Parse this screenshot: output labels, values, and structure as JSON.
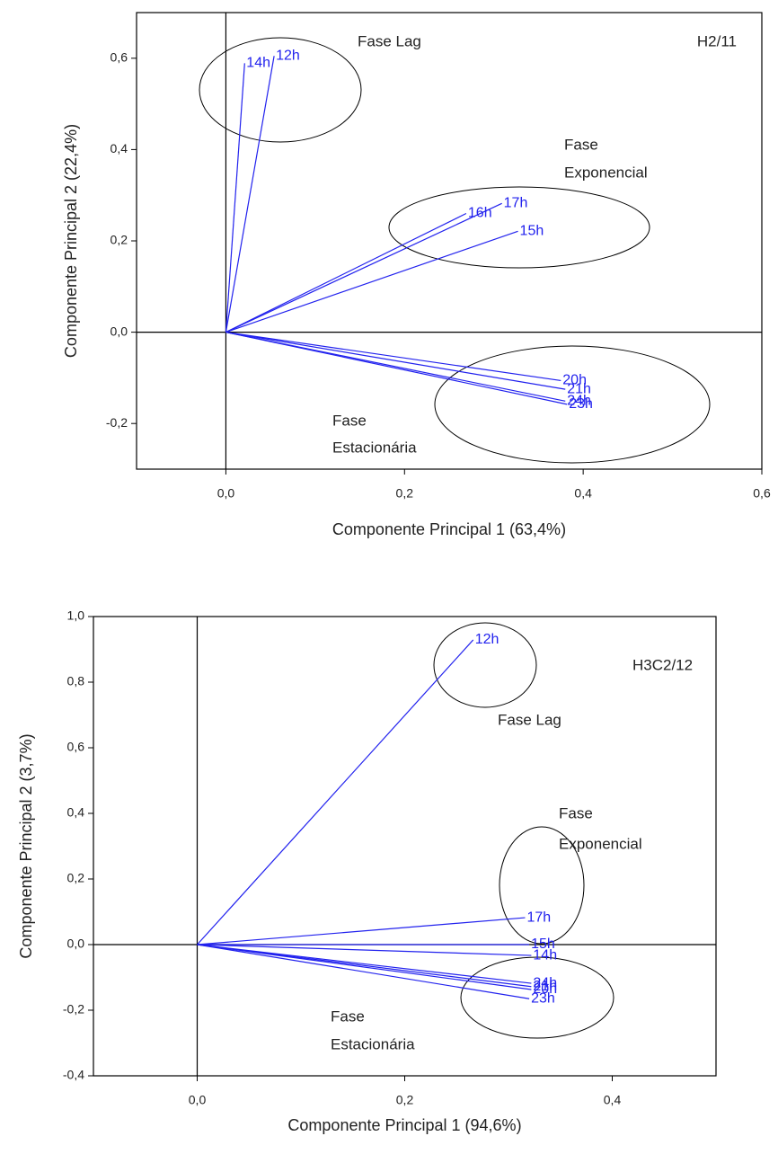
{
  "chart_data": [
    {
      "type": "biplot",
      "annotations": [
        "Fase Lag",
        "H2/11",
        "Fase",
        "Exponencial",
        "Fase",
        "Estacionária"
      ],
      "x_label": "Componente Principal 1 (63,4%)",
      "y_label": "Componente Principal 2 (22,4%)",
      "color": "#2222ee",
      "labels": [
        "14h",
        "12h",
        "16h",
        "17h",
        "15h",
        "20h",
        "21h",
        "24h",
        "23h"
      ],
      "x": [
        0.021,
        0.054,
        0.269,
        0.309,
        0.327,
        0.375,
        0.38,
        0.38,
        0.382
      ],
      "y": [
        0.589,
        0.605,
        0.26,
        0.282,
        0.221,
        -0.106,
        -0.125,
        -0.151,
        -0.158
      ],
      "xlim": [
        -0.1,
        0.6
      ],
      "ylim": [
        -0.3,
        0.7
      ],
      "xticks": [
        {
          "value": 0.0,
          "label": "0,0"
        },
        {
          "value": 0.2,
          "label": "0,2"
        },
        {
          "value": 0.4,
          "label": "0,4"
        },
        {
          "value": 0.6,
          "label": "0,6"
        }
      ],
      "yticks": [
        {
          "value": -0.2,
          "label": "-0,2"
        },
        {
          "value": 0.0,
          "label": "0,0"
        },
        {
          "value": 0.2,
          "label": "0,2"
        },
        {
          "value": 0.4,
          "label": "0,4"
        },
        {
          "value": 0.6,
          "label": "0,6"
        }
      ]
    },
    {
      "type": "biplot",
      "annotations": [
        "H3C2/12",
        "Fase Lag",
        "Fase",
        "Exponencial",
        "Fase",
        "Estacionária"
      ],
      "x_label": "Componente Principal 1 (94,6%)",
      "y_label": "Componente Principal 2 (3,7%)",
      "color": "#2222ee",
      "labels": [
        "12h",
        "17h",
        "15h",
        "14h",
        "24h",
        "21h",
        "20h",
        "23h"
      ],
      "x": [
        0.266,
        0.316,
        0.32,
        0.322,
        0.322,
        0.322,
        0.322,
        0.32
      ],
      "y": [
        0.929,
        0.082,
        0.0,
        -0.033,
        -0.118,
        -0.128,
        -0.137,
        -0.165
      ],
      "xlim": [
        -0.1,
        0.5
      ],
      "ylim": [
        -0.4,
        1.0
      ],
      "xticks": [
        {
          "value": 0.0,
          "label": "0,0"
        },
        {
          "value": 0.2,
          "label": "0,2"
        },
        {
          "value": 0.4,
          "label": "0,4"
        }
      ],
      "yticks": [
        {
          "value": -0.4,
          "label": "-0,4"
        },
        {
          "value": -0.2,
          "label": "-0,2"
        },
        {
          "value": 0.0,
          "label": "0,0"
        },
        {
          "value": 0.2,
          "label": "0,2"
        },
        {
          "value": 0.4,
          "label": "0,4"
        },
        {
          "value": 0.6,
          "label": "0,6"
        },
        {
          "value": 0.8,
          "label": "0,8"
        },
        {
          "value": 1.0,
          "label": "1,0"
        }
      ]
    }
  ]
}
